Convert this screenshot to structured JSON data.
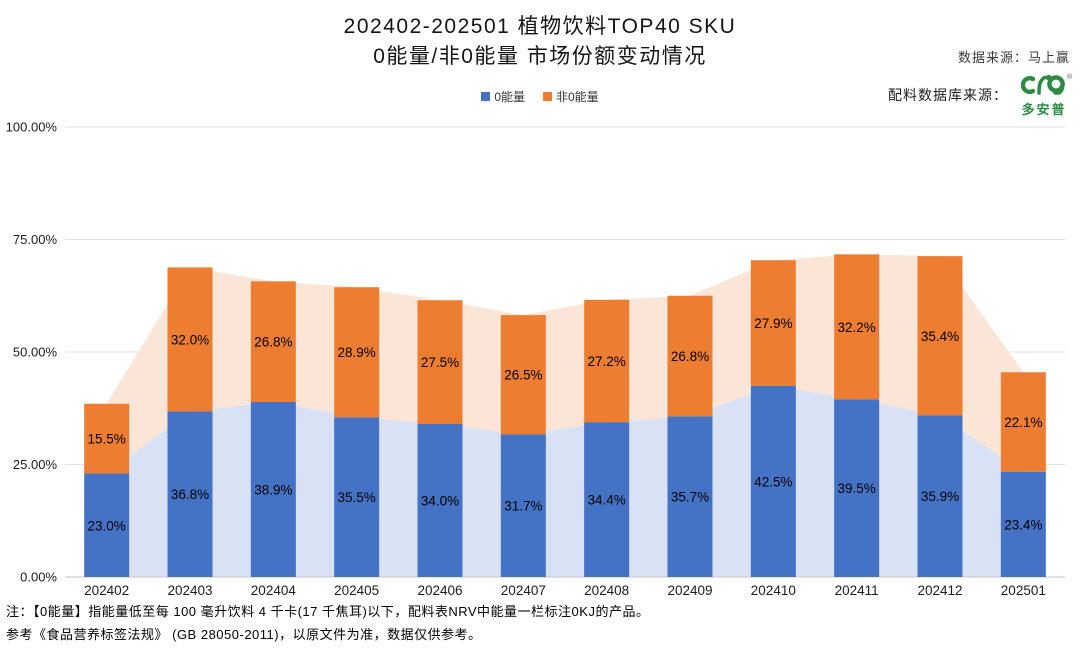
{
  "chart_data": {
    "type": "bar",
    "variant": "stacked-bars-with-area-silhouette",
    "title": "202402-202501 植物饮料TOP40 SKU",
    "subtitle": "0能量/非0能量 市场份额变动情况",
    "categories": [
      "202402",
      "202403",
      "202404",
      "202405",
      "202406",
      "202407",
      "202408",
      "202409",
      "202410",
      "202411",
      "202412",
      "202501"
    ],
    "series": [
      {
        "name": "0能量",
        "color": "#4472C4",
        "area_color": "#D9E1F5",
        "values": [
          23.0,
          36.8,
          38.9,
          35.5,
          34.0,
          31.7,
          34.4,
          35.7,
          42.5,
          39.5,
          35.9,
          23.4
        ]
      },
      {
        "name": "非0能量",
        "color": "#ED7D31",
        "area_color": "#FBE5D6",
        "values": [
          15.5,
          32.0,
          26.8,
          28.9,
          27.5,
          26.5,
          27.2,
          26.8,
          27.9,
          32.2,
          35.4,
          22.1
        ]
      }
    ],
    "ylim": [
      0,
      100
    ],
    "yticks": [
      {
        "value": 0,
        "label": "0.00%"
      },
      {
        "value": 25,
        "label": "25.00%"
      },
      {
        "value": 50,
        "label": "50.00%"
      },
      {
        "value": 75,
        "label": "75.00%"
      },
      {
        "value": 100,
        "label": "100.00%"
      }
    ],
    "grid": true,
    "gridline_color": "#E2E2E2",
    "axis_line_color": "#CFCFCF",
    "label_color": "#000000",
    "legend_position": "top",
    "label_format": "percent-one-decimal"
  },
  "sources": {
    "data_source": "数据来源：马上赢",
    "ingredient_source_label": "配料数据库来源：",
    "logo": {
      "name": "多安普",
      "registered": "®",
      "color": "#2E8B44"
    }
  },
  "footnote": {
    "line1": "注：【0能量】指能量低至每 100 毫升饮料 4 千卡(17 千焦耳)以下，配料表NRV中能量一栏标注0KJ的产品。",
    "line2": "参考《食品营养标签法规》 (GB 28050-2011)，以原文件为准，数据仅供参考。"
  }
}
